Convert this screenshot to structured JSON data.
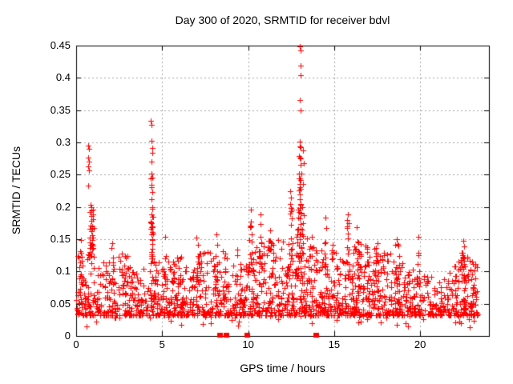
{
  "chart_data": {
    "type": "scatter",
    "title": "Day 300 of 2020, SRMTID for receiver bdvl",
    "xlabel": "GPS time / hours",
    "ylabel": "SRMTID / TECUs",
    "xlim": [
      0,
      24
    ],
    "ylim": [
      0,
      0.45
    ],
    "xticks": [
      0,
      5,
      10,
      15,
      20
    ],
    "yticks": [
      0,
      0.05,
      0.1,
      0.15,
      0.2,
      0.25,
      0.3,
      0.35,
      0.4,
      0.45
    ],
    "grid": true,
    "legend": "none",
    "marker": {
      "shape": "plus",
      "size": 7,
      "color": "#ff0000"
    },
    "colors": {
      "marker": "#ff0000",
      "grid": "#a6a6a6",
      "axis": "#000000",
      "background": "#ffffff",
      "text": "#000000"
    },
    "series_name": "SRMTID",
    "peaks": [
      [
        0.7,
        0.295
      ],
      [
        0.73,
        0.29
      ],
      [
        0.7,
        0.277
      ],
      [
        0.74,
        0.27
      ],
      [
        0.71,
        0.263
      ],
      [
        0.73,
        0.257
      ],
      [
        0.72,
        0.233
      ],
      [
        0.86,
        0.203
      ],
      [
        0.88,
        0.195
      ],
      [
        0.9,
        0.186
      ],
      [
        0.89,
        0.178
      ],
      [
        0.91,
        0.17
      ],
      [
        0.9,
        0.163
      ],
      [
        0.92,
        0.156
      ],
      [
        0.91,
        0.149
      ],
      [
        0.93,
        0.142
      ],
      [
        0.92,
        0.135
      ],
      [
        0.89,
        0.128
      ],
      [
        0.3,
        0.149
      ],
      [
        2.1,
        0.144
      ],
      [
        5.15,
        0.154
      ],
      [
        7.0,
        0.152
      ],
      [
        8.15,
        0.157
      ],
      [
        4.35,
        0.334
      ],
      [
        4.4,
        0.327
      ],
      [
        4.37,
        0.302
      ],
      [
        4.41,
        0.291
      ],
      [
        4.43,
        0.284
      ],
      [
        4.39,
        0.27
      ],
      [
        4.36,
        0.252
      ],
      [
        4.41,
        0.246
      ],
      [
        4.4,
        0.234
      ],
      [
        4.38,
        0.212
      ],
      [
        4.42,
        0.197
      ],
      [
        4.39,
        0.189
      ],
      [
        4.37,
        0.175
      ],
      [
        4.4,
        0.168
      ],
      [
        4.38,
        0.157
      ],
      [
        4.41,
        0.15
      ],
      [
        13.02,
        0.449
      ],
      [
        13.05,
        0.443
      ],
      [
        13.03,
        0.419
      ],
      [
        13.06,
        0.404
      ],
      [
        13.0,
        0.366
      ],
      [
        13.04,
        0.349
      ],
      [
        12.98,
        0.301
      ],
      [
        13.02,
        0.294
      ],
      [
        13.07,
        0.292
      ],
      [
        12.99,
        0.277
      ],
      [
        13.05,
        0.275
      ],
      [
        12.97,
        0.244
      ],
      [
        13.03,
        0.242
      ],
      [
        13.0,
        0.235
      ],
      [
        13.05,
        0.228
      ],
      [
        13.01,
        0.22
      ],
      [
        12.99,
        0.212
      ],
      [
        13.04,
        0.205
      ],
      [
        13.02,
        0.198
      ],
      [
        13.06,
        0.19
      ],
      [
        13.0,
        0.182
      ],
      [
        13.03,
        0.174
      ],
      [
        13.05,
        0.166
      ],
      [
        13.01,
        0.158
      ],
      [
        12.98,
        0.15
      ],
      [
        12.45,
        0.224
      ],
      [
        12.49,
        0.214
      ],
      [
        12.43,
        0.204
      ],
      [
        12.5,
        0.194
      ],
      [
        10.15,
        0.196
      ],
      [
        10.17,
        0.177
      ],
      [
        10.13,
        0.171
      ],
      [
        10.7,
        0.189
      ],
      [
        10.73,
        0.174
      ],
      [
        11.3,
        0.164
      ],
      [
        14.5,
        0.184
      ],
      [
        14.53,
        0.167
      ],
      [
        15.8,
        0.189
      ],
      [
        15.83,
        0.175
      ],
      [
        16.3,
        0.169
      ],
      [
        17.5,
        0.144
      ],
      [
        18.65,
        0.15
      ],
      [
        19.9,
        0.154
      ],
      [
        22.5,
        0.147
      ],
      [
        22.55,
        0.139
      ]
    ],
    "zero_runs": [
      {
        "x0": 8.3,
        "x1": 8.38,
        "y": 0
      },
      {
        "x0": 8.66,
        "x1": 8.74,
        "y": 0
      },
      {
        "x0": 9.88,
        "x1": 9.95,
        "y": 0
      },
      {
        "x0": 13.9,
        "x1": 13.96,
        "y": 0
      }
    ],
    "generator": {
      "seed": 20201026,
      "x_end": 23.35,
      "floor": 0.032,
      "power": 2.0,
      "dip_chance": 0.02,
      "counts_per_hour": [
        78,
        72,
        70,
        66,
        72,
        72,
        70,
        74,
        76,
        72,
        80,
        76,
        82,
        88,
        78,
        78,
        88,
        80,
        82,
        72,
        58,
        60,
        85,
        30
      ],
      "envelope": [
        0.13,
        0.115,
        0.13,
        0.11,
        0.115,
        0.125,
        0.125,
        0.13,
        0.135,
        0.12,
        0.145,
        0.15,
        0.155,
        0.16,
        0.145,
        0.14,
        0.15,
        0.135,
        0.13,
        0.115,
        0.095,
        0.1,
        0.125,
        0.115
      ],
      "columns": [
        {
          "x": 0.88,
          "w": 0.14,
          "n": 22,
          "y0": 0.12,
          "y1": 0.2
        },
        {
          "x": 0.3,
          "w": 0.1,
          "n": 8,
          "y0": 0.08,
          "y1": 0.145
        },
        {
          "x": 2.1,
          "w": 0.08,
          "n": 6,
          "y0": 0.08,
          "y1": 0.14
        },
        {
          "x": 3.2,
          "w": 0.07,
          "n": 5,
          "y0": 0.075,
          "y1": 0.118
        },
        {
          "x": 4.39,
          "w": 0.09,
          "n": 24,
          "y0": 0.12,
          "y1": 0.25
        },
        {
          "x": 5.15,
          "w": 0.06,
          "n": 5,
          "y0": 0.09,
          "y1": 0.148
        },
        {
          "x": 5.6,
          "w": 0.08,
          "n": 6,
          "y0": 0.08,
          "y1": 0.125
        },
        {
          "x": 6.0,
          "w": 0.07,
          "n": 5,
          "y0": 0.078,
          "y1": 0.138
        },
        {
          "x": 7.0,
          "w": 0.08,
          "n": 7,
          "y0": 0.085,
          "y1": 0.148
        },
        {
          "x": 8.15,
          "w": 0.08,
          "n": 7,
          "y0": 0.085,
          "y1": 0.15
        },
        {
          "x": 9.3,
          "w": 0.07,
          "n": 6,
          "y0": 0.08,
          "y1": 0.135
        },
        {
          "x": 10.15,
          "w": 0.08,
          "n": 9,
          "y0": 0.1,
          "y1": 0.188
        },
        {
          "x": 10.7,
          "w": 0.08,
          "n": 9,
          "y0": 0.1,
          "y1": 0.183
        },
        {
          "x": 11.3,
          "w": 0.08,
          "n": 7,
          "y0": 0.09,
          "y1": 0.158
        },
        {
          "x": 12.47,
          "w": 0.1,
          "n": 10,
          "y0": 0.1,
          "y1": 0.208
        },
        {
          "x": 13.05,
          "w": 0.2,
          "n": 34,
          "y0": 0.115,
          "y1": 0.3
        },
        {
          "x": 13.6,
          "w": 0.1,
          "n": 6,
          "y0": 0.08,
          "y1": 0.128
        },
        {
          "x": 14.5,
          "w": 0.08,
          "n": 7,
          "y0": 0.09,
          "y1": 0.172
        },
        {
          "x": 15.8,
          "w": 0.08,
          "n": 9,
          "y0": 0.09,
          "y1": 0.182
        },
        {
          "x": 16.4,
          "w": 0.18,
          "n": 14,
          "y0": 0.09,
          "y1": 0.156
        },
        {
          "x": 17.5,
          "w": 0.08,
          "n": 7,
          "y0": 0.085,
          "y1": 0.138
        },
        {
          "x": 18.7,
          "w": 0.14,
          "n": 10,
          "y0": 0.085,
          "y1": 0.145
        },
        {
          "x": 19.9,
          "w": 0.05,
          "n": 4,
          "y0": 0.08,
          "y1": 0.148
        },
        {
          "x": 22.5,
          "w": 0.14,
          "n": 14,
          "y0": 0.085,
          "y1": 0.145
        },
        {
          "x": 23.0,
          "w": 0.12,
          "n": 10,
          "y0": 0.05,
          "y1": 0.118
        }
      ]
    }
  }
}
